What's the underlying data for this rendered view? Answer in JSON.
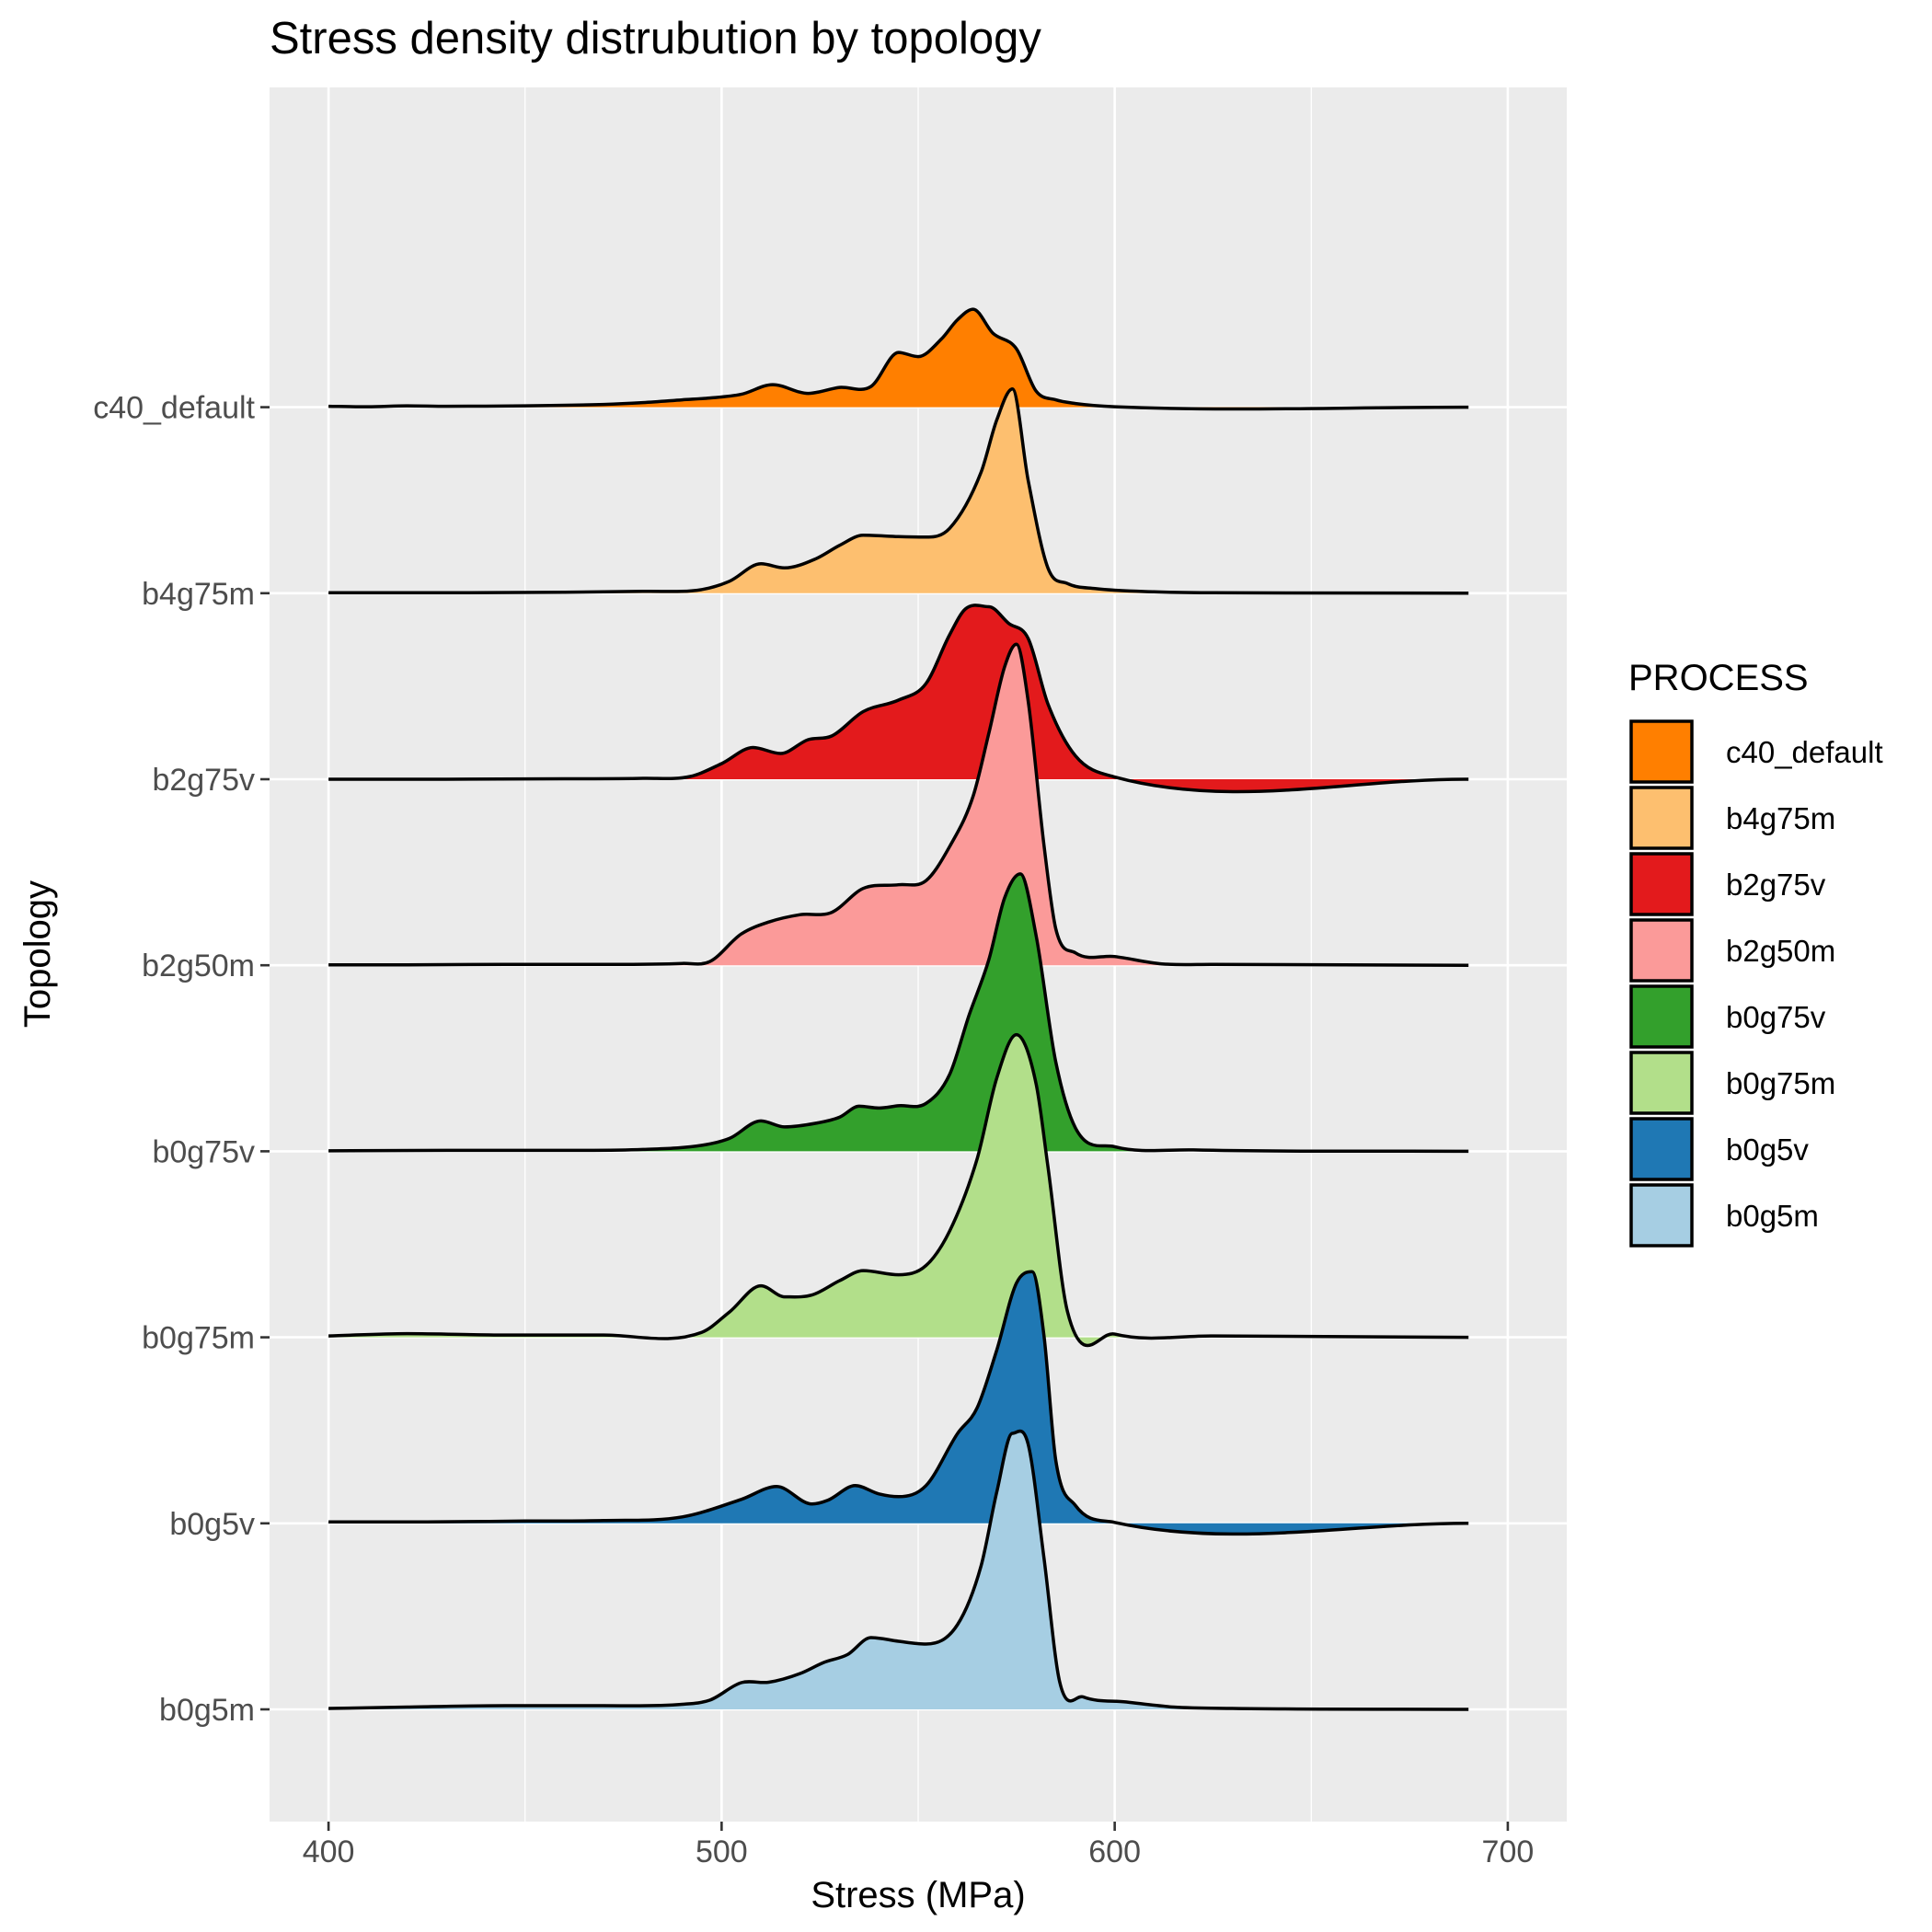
{
  "chart_data": {
    "type": "area",
    "title": "Stress density distrubution by topology",
    "xlabel": "Stress (MPa)",
    "ylabel": "Topology",
    "xlim": [
      385,
      715
    ],
    "x_ticks": [
      400,
      500,
      600,
      700
    ],
    "grid": true,
    "legend": {
      "title": "PROCESS",
      "position": "right"
    },
    "categories": [
      "b0g5m",
      "b0g5v",
      "b0g75m",
      "b0g75v",
      "b2g50m",
      "b2g75v",
      "b4g75m",
      "c40_default"
    ],
    "series": [
      {
        "name": "c40_default",
        "color": "#FF7F00",
        "x": [
          400,
          410,
          420,
          430,
          450,
          470,
          480,
          490,
          497,
          505,
          513,
          522,
          530,
          538,
          545,
          550,
          556,
          560,
          564,
          569,
          575,
          580,
          585,
          590,
          600,
          690
        ],
        "density": [
          0.02,
          0.01,
          0.03,
          0.02,
          0.03,
          0.06,
          0.1,
          0.16,
          0.2,
          0.28,
          0.49,
          0.3,
          0.43,
          0.45,
          1.19,
          1.1,
          1.49,
          1.9,
          2.13,
          1.61,
          1.27,
          0.35,
          0.16,
          0.08,
          0.01,
          0.0
        ]
      },
      {
        "name": "b4g75m",
        "color": "#FDBF6F",
        "x": [
          400,
          430,
          460,
          480,
          495,
          502,
          510,
          516,
          524,
          530,
          536,
          545,
          552,
          558,
          566,
          570,
          574,
          578,
          583,
          588,
          595,
          610,
          625,
          690
        ],
        "density": [
          0.01,
          0.01,
          0.02,
          0.04,
          0.08,
          0.26,
          0.64,
          0.55,
          0.75,
          1.04,
          1.26,
          1.23,
          1.22,
          1.41,
          2.63,
          3.77,
          4.44,
          2.45,
          0.55,
          0.21,
          0.1,
          0.03,
          0.01,
          0.0
        ]
      },
      {
        "name": "b2g75v",
        "color": "#E31A1C",
        "x": [
          400,
          430,
          460,
          480,
          492,
          500,
          508,
          515,
          522,
          528,
          536,
          545,
          552,
          558,
          562,
          568,
          573,
          578,
          583,
          590,
          600,
          690
        ],
        "density": [
          0.0,
          0.0,
          0.01,
          0.02,
          0.06,
          0.34,
          0.69,
          0.56,
          0.86,
          0.94,
          1.47,
          1.72,
          2.08,
          3.14,
          3.7,
          3.75,
          3.39,
          3.06,
          1.64,
          0.51,
          0.05,
          0.0
        ]
      },
      {
        "name": "b2g50m",
        "color": "#FB9A99",
        "x": [
          400,
          420,
          445,
          470,
          490,
          497,
          505,
          512,
          520,
          528,
          536,
          545,
          552,
          558,
          564,
          568,
          572,
          575,
          578,
          582,
          585,
          590,
          600,
          612,
          625,
          690
        ],
        "density": [
          0.01,
          0.01,
          0.02,
          0.02,
          0.04,
          0.08,
          0.68,
          0.94,
          1.1,
          1.15,
          1.67,
          1.75,
          1.84,
          2.58,
          3.68,
          5.05,
          6.49,
          6.98,
          5.74,
          2.62,
          0.8,
          0.27,
          0.19,
          0.03,
          0.02,
          0.0
        ]
      },
      {
        "name": "b0g75v",
        "color": "#33A02C",
        "x": [
          400,
          430,
          460,
          480,
          495,
          502,
          510,
          516,
          524,
          530,
          535,
          540,
          545,
          552,
          558,
          563,
          568,
          572,
          576,
          580,
          585,
          590,
          600,
          620,
          690
        ],
        "density": [
          0.01,
          0.02,
          0.02,
          0.04,
          0.13,
          0.28,
          0.66,
          0.53,
          0.61,
          0.74,
          0.98,
          0.94,
          0.99,
          1.04,
          1.67,
          2.97,
          4.17,
          5.51,
          6.03,
          4.69,
          1.95,
          0.51,
          0.1,
          0.03,
          0.0
        ]
      },
      {
        "name": "b0g75m",
        "color": "#B2DF8A",
        "x": [
          400,
          420,
          445,
          470,
          495,
          502,
          510,
          516,
          523,
          530,
          536,
          545,
          552,
          558,
          565,
          570,
          575,
          580,
          583,
          588,
          600,
          625,
          690
        ],
        "density": [
          0.03,
          0.08,
          0.05,
          0.05,
          0.11,
          0.55,
          1.12,
          0.88,
          0.92,
          1.23,
          1.45,
          1.36,
          1.56,
          2.31,
          3.88,
          5.64,
          6.58,
          5.51,
          3.72,
          0.55,
          0.07,
          0.03,
          0.0
        ]
      },
      {
        "name": "b0g5v",
        "color": "#1F78B4",
        "x": [
          400,
          425,
          450,
          470,
          490,
          505,
          514,
          523,
          527,
          534,
          540,
          545,
          552,
          560,
          565,
          570,
          575,
          579,
          582,
          585,
          590,
          600,
          690
        ],
        "density": [
          0.03,
          0.03,
          0.05,
          0.06,
          0.14,
          0.52,
          0.8,
          0.42,
          0.5,
          0.82,
          0.64,
          0.58,
          0.82,
          1.95,
          2.51,
          3.77,
          5.22,
          5.47,
          4.09,
          1.38,
          0.39,
          0.02,
          0.0
        ]
      },
      {
        "name": "b0g5m",
        "color": "#A6CEE3",
        "x": [
          400,
          420,
          445,
          470,
          490,
          497,
          505,
          512,
          520,
          526,
          532,
          538,
          545,
          552,
          560,
          566,
          570,
          574,
          578,
          582,
          586,
          592,
          603,
          615,
          630,
          690
        ],
        "density": [
          0.02,
          0.05,
          0.08,
          0.08,
          0.11,
          0.2,
          0.58,
          0.59,
          0.78,
          1.02,
          1.19,
          1.56,
          1.48,
          1.42,
          1.84,
          3.12,
          4.73,
          6.0,
          5.76,
          3.3,
          0.6,
          0.27,
          0.16,
          0.05,
          0.02,
          0.0
        ]
      }
    ]
  }
}
